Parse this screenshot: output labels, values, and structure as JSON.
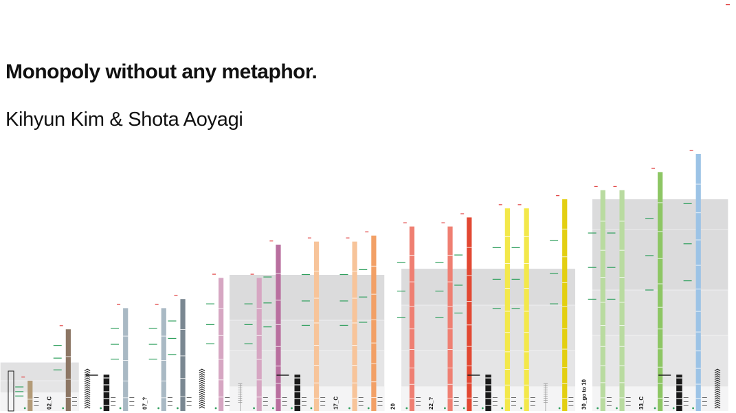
{
  "title": "Monopoly without any metaphor.",
  "subtitle": "Kihyun Kim & Shota Aoyagi",
  "colors": {
    "brown": "#b39b78",
    "brown_dark": "#8c7664",
    "lightblue": "#a9b9c4",
    "lightblue_dark": "#7a8791",
    "pink": "#d6a6c2",
    "pink_dark": "#b96f9f",
    "orange": "#f7c49a",
    "orange_dark": "#f2a066",
    "red": "#ef7f72",
    "red_dark": "#e24832",
    "yellow": "#f3e84a",
    "yellow_dark": "#e3cf12",
    "green": "#b9dba0",
    "green_dark": "#8dc664",
    "blue": "#9cc3e6",
    "black": "#1a1a1a",
    "band": "#d4d4d6",
    "band_light": "#ebebec",
    "marker": "#2e9f5d",
    "alert": "#e24a4a"
  },
  "chart_data": {
    "type": "bar",
    "ylim": [
      0,
      100
    ],
    "series": [
      {
        "values": [
          0,
          7,
          3,
          10,
          0,
          0,
          0,
          12,
          11,
          0,
          12,
          3,
          12,
          0,
          14,
          16,
          12,
          0,
          14,
          14,
          16,
          0,
          0,
          22,
          21,
          21,
          0,
          19,
          20,
          23,
          0,
          26,
          32,
          0,
          0,
          30,
          38
        ]
      }
    ],
    "squares": [
      {
        "label": "",
        "type": "outline",
        "value": 0
      },
      {
        "label": "",
        "type": "brown",
        "value": 10
      },
      {
        "label": "02_C",
        "type": "text"
      },
      {
        "label": "",
        "type": "brown_dark",
        "value": 27
      },
      {
        "label": "",
        "type": "chevron"
      },
      {
        "label": "",
        "type": "black",
        "value": 12
      },
      {
        "label": "",
        "type": "lightblue",
        "value": 34
      },
      {
        "label": "07_?",
        "type": "text"
      },
      {
        "label": "",
        "type": "lightblue",
        "value": 34
      },
      {
        "label": "",
        "type": "lightblue_dark",
        "value": 37
      },
      {
        "label": "",
        "type": "chevron"
      },
      {
        "label": "",
        "type": "pink",
        "value": 44
      },
      {
        "label": "",
        "type": "grey_stub",
        "value": 9
      },
      {
        "label": "",
        "type": "pink",
        "value": 44
      },
      {
        "label": "",
        "type": "pink_dark",
        "value": 55
      },
      {
        "label": "",
        "type": "black",
        "value": 12
      },
      {
        "label": "",
        "type": "orange",
        "value": 56
      },
      {
        "label": "17_C",
        "type": "text"
      },
      {
        "label": "",
        "type": "orange",
        "value": 56
      },
      {
        "label": "",
        "type": "orange_dark",
        "value": 58
      },
      {
        "label": "20",
        "type": "text"
      },
      {
        "label": "",
        "type": "red",
        "value": 61
      },
      {
        "label": "22_?",
        "type": "text"
      },
      {
        "label": "",
        "type": "red",
        "value": 61
      },
      {
        "label": "",
        "type": "red_dark",
        "value": 64
      },
      {
        "label": "",
        "type": "black",
        "value": 12
      },
      {
        "label": "",
        "type": "yellow",
        "value": 67
      },
      {
        "label": "",
        "type": "yellow",
        "value": 67
      },
      {
        "label": "",
        "type": "grey_stub",
        "value": 9
      },
      {
        "label": "",
        "type": "yellow_dark",
        "value": 70
      },
      {
        "label": "30_go to 10",
        "type": "text"
      },
      {
        "label": "",
        "type": "green",
        "value": 73
      },
      {
        "label": "",
        "type": "green",
        "value": 73
      },
      {
        "label": "33_C",
        "type": "text"
      },
      {
        "label": "",
        "type": "green_dark",
        "value": 79
      },
      {
        "label": "",
        "type": "black",
        "value": 12
      },
      {
        "label": "",
        "type": "blue",
        "value": 85
      },
      {
        "label": "",
        "type": "chevron"
      }
    ],
    "bands": [
      {
        "from": 0,
        "to": 3,
        "levels": [
          6,
          10,
          16
        ]
      },
      {
        "from": 12,
        "to": 19,
        "levels": [
          8,
          20,
          30,
          45
        ]
      },
      {
        "from": 21,
        "to": 29,
        "levels": [
          8,
          20,
          35,
          47
        ]
      },
      {
        "from": 31,
        "to": 37,
        "levels": [
          8,
          25,
          40,
          60,
          70
        ]
      }
    ]
  }
}
